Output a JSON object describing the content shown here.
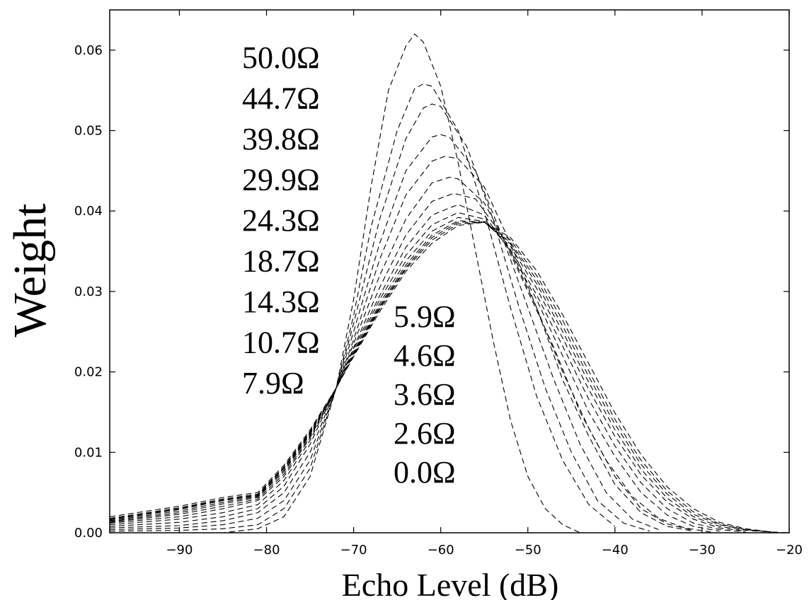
{
  "chart_data": {
    "type": "line",
    "xlabel": "Echo Level (dB)",
    "ylabel": "Weight",
    "xlim": [
      -98,
      -20
    ],
    "ylim": [
      0.0,
      0.065
    ],
    "x_ticks": [
      -90,
      -80,
      -70,
      -60,
      -50,
      -40,
      -30,
      -20
    ],
    "x_tick_labels": [
      "−90",
      "−80",
      "−70",
      "−60",
      "−50",
      "−40",
      "−30",
      "−20"
    ],
    "y_ticks": [
      0.0,
      0.01,
      0.02,
      0.03,
      0.04,
      0.05,
      0.06
    ],
    "y_tick_labels": [
      "0.00",
      "0.01",
      "0.02",
      "0.03",
      "0.04",
      "0.05",
      "0.06"
    ],
    "grid": false,
    "line_style": "dashed",
    "line_color": "#000000",
    "series": [
      {
        "name": "50.0Ω",
        "x": [
          -98,
          -90,
          -85,
          -81,
          -78,
          -75,
          -72,
          -70,
          -68,
          -66,
          -64,
          -63,
          -62,
          -60,
          -58,
          -56,
          -54,
          -52,
          -50,
          -48,
          -46,
          -44
        ],
        "y": [
          0.0,
          0.0,
          0.0,
          0.0005,
          0.002,
          0.007,
          0.018,
          0.029,
          0.043,
          0.055,
          0.0605,
          0.062,
          0.061,
          0.0555,
          0.046,
          0.035,
          0.024,
          0.014,
          0.007,
          0.003,
          0.001,
          0.0
        ]
      },
      {
        "name": "44.7Ω",
        "x": [
          -98,
          -90,
          -85,
          -81,
          -78,
          -75,
          -72,
          -70,
          -68,
          -65,
          -63,
          -62,
          -61,
          -58,
          -55,
          -52,
          -49,
          -46,
          -43,
          -40
        ],
        "y": [
          0.0002,
          0.0003,
          0.0005,
          0.001,
          0.003,
          0.008,
          0.018,
          0.027,
          0.038,
          0.05,
          0.0552,
          0.0558,
          0.0555,
          0.05,
          0.04,
          0.028,
          0.017,
          0.009,
          0.0035,
          0.0008
        ]
      },
      {
        "name": "39.8Ω",
        "x": [
          -98,
          -90,
          -85,
          -81,
          -78,
          -75,
          -72,
          -70,
          -67,
          -64,
          -62,
          -61,
          -60,
          -57,
          -54,
          -51,
          -48,
          -45,
          -42,
          -39,
          -36
        ],
        "y": [
          0.0004,
          0.0006,
          0.001,
          0.0018,
          0.004,
          0.009,
          0.018,
          0.026,
          0.039,
          0.049,
          0.0528,
          0.0533,
          0.053,
          0.048,
          0.039,
          0.028,
          0.018,
          0.01,
          0.004,
          0.0012,
          0.0002
        ]
      },
      {
        "name": "29.9Ω",
        "x": [
          -98,
          -90,
          -85,
          -81,
          -78,
          -75,
          -72,
          -70,
          -67,
          -64,
          -61,
          -60,
          -59,
          -56,
          -53,
          -50,
          -47,
          -44,
          -41,
          -38,
          -35
        ],
        "y": [
          0.0006,
          0.0009,
          0.0015,
          0.0025,
          0.005,
          0.01,
          0.018,
          0.025,
          0.036,
          0.045,
          0.0492,
          0.0495,
          0.0492,
          0.045,
          0.037,
          0.028,
          0.019,
          0.011,
          0.005,
          0.0017,
          0.0004
        ]
      },
      {
        "name": "24.3Ω",
        "x": [
          -98,
          -90,
          -85,
          -81,
          -78,
          -75,
          -72,
          -70,
          -67,
          -64,
          -61,
          -59.5,
          -58,
          -55,
          -52,
          -49,
          -46,
          -43,
          -40,
          -37,
          -34,
          -31
        ],
        "y": [
          0.0008,
          0.0013,
          0.002,
          0.003,
          0.0058,
          0.011,
          0.018,
          0.024,
          0.034,
          0.042,
          0.0462,
          0.0468,
          0.0465,
          0.043,
          0.036,
          0.028,
          0.019,
          0.012,
          0.006,
          0.0025,
          0.0008,
          0.0002
        ]
      },
      {
        "name": "18.7Ω",
        "x": [
          -98,
          -90,
          -85,
          -81,
          -78,
          -75,
          -72,
          -70,
          -67,
          -64,
          -61,
          -59,
          -58,
          -55,
          -52,
          -49,
          -46,
          -43,
          -40,
          -37,
          -34,
          -31
        ],
        "y": [
          0.001,
          0.0017,
          0.0025,
          0.0035,
          0.0065,
          0.0115,
          0.018,
          0.0235,
          0.032,
          0.039,
          0.0435,
          0.0442,
          0.044,
          0.041,
          0.035,
          0.028,
          0.02,
          0.013,
          0.007,
          0.003,
          0.0011,
          0.0003
        ]
      },
      {
        "name": "14.3Ω",
        "x": [
          -98,
          -90,
          -85,
          -81,
          -78,
          -75,
          -72,
          -70,
          -67,
          -64,
          -61,
          -58.5,
          -56,
          -53,
          -50,
          -47,
          -44,
          -41,
          -38,
          -35,
          -32,
          -29
        ],
        "y": [
          0.0012,
          0.002,
          0.003,
          0.004,
          0.007,
          0.0118,
          0.018,
          0.023,
          0.0305,
          0.037,
          0.0412,
          0.0422,
          0.0415,
          0.037,
          0.03,
          0.023,
          0.015,
          0.009,
          0.0045,
          0.0018,
          0.0006,
          0.0001
        ]
      },
      {
        "name": "10.7Ω",
        "x": [
          -98,
          -90,
          -85,
          -81,
          -78,
          -75,
          -72,
          -70,
          -67,
          -64,
          -61,
          -58,
          -55,
          -52,
          -49,
          -46,
          -43,
          -40,
          -37,
          -34,
          -31,
          -28
        ],
        "y": [
          0.0013,
          0.0023,
          0.0033,
          0.0042,
          0.0073,
          0.012,
          0.018,
          0.0228,
          0.0295,
          0.0355,
          0.0395,
          0.0408,
          0.0395,
          0.035,
          0.029,
          0.022,
          0.015,
          0.0095,
          0.005,
          0.0022,
          0.0008,
          0.0002
        ]
      },
      {
        "name": "7.9Ω",
        "x": [
          -98,
          -90,
          -85,
          -81,
          -78,
          -75,
          -72,
          -70,
          -67,
          -64,
          -61,
          -58,
          -55,
          -52,
          -49,
          -46,
          -43,
          -40,
          -37,
          -34,
          -31,
          -28,
          -25
        ],
        "y": [
          0.0014,
          0.0025,
          0.0036,
          0.0044,
          0.0076,
          0.0122,
          0.018,
          0.0225,
          0.029,
          0.0345,
          0.0383,
          0.0398,
          0.039,
          0.0352,
          0.0296,
          0.0232,
          0.0166,
          0.0108,
          0.0062,
          0.003,
          0.0012,
          0.0004,
          0.0001
        ]
      },
      {
        "name": "5.9Ω",
        "x": [
          -98,
          -90,
          -85,
          -81,
          -78,
          -75,
          -72,
          -70,
          -67,
          -64,
          -61,
          -58,
          -55,
          -52,
          -49,
          -46,
          -43,
          -40,
          -37,
          -34,
          -31,
          -28,
          -25
        ],
        "y": [
          0.0015,
          0.0027,
          0.0038,
          0.0045,
          0.0078,
          0.0123,
          0.018,
          0.0223,
          0.0285,
          0.0338,
          0.0375,
          0.0392,
          0.0387,
          0.0356,
          0.0304,
          0.0242,
          0.0178,
          0.012,
          0.0072,
          0.0038,
          0.0017,
          0.0006,
          0.0002
        ]
      },
      {
        "name": "4.6Ω",
        "x": [
          -98,
          -90,
          -85,
          -81,
          -78,
          -75,
          -72,
          -70,
          -67,
          -64,
          -61,
          -58,
          -55,
          -52,
          -49,
          -46,
          -43,
          -40,
          -37,
          -34,
          -31,
          -28,
          -25,
          -22
        ],
        "y": [
          0.0016,
          0.0029,
          0.004,
          0.0046,
          0.008,
          0.0124,
          0.018,
          0.0222,
          0.0282,
          0.0333,
          0.037,
          0.0388,
          0.0386,
          0.0359,
          0.031,
          0.025,
          0.0187,
          0.0128,
          0.0079,
          0.0043,
          0.002,
          0.0008,
          0.0003,
          0.0001
        ]
      },
      {
        "name": "3.6Ω",
        "x": [
          -98,
          -90,
          -85,
          -81,
          -78,
          -75,
          -72,
          -70,
          -67,
          -64,
          -61,
          -58,
          -55,
          -52,
          -49,
          -46,
          -43,
          -40,
          -37,
          -34,
          -31,
          -28,
          -25,
          -22
        ],
        "y": [
          0.0017,
          0.003,
          0.0041,
          0.0047,
          0.0081,
          0.0125,
          0.018,
          0.0221,
          0.028,
          0.033,
          0.0367,
          0.0386,
          0.0386,
          0.0361,
          0.0315,
          0.0257,
          0.0194,
          0.0135,
          0.0085,
          0.0048,
          0.0023,
          0.001,
          0.0004,
          0.0001
        ]
      },
      {
        "name": "2.6Ω",
        "x": [
          -98,
          -90,
          -85,
          -81,
          -78,
          -75,
          -72,
          -70,
          -67,
          -64,
          -61,
          -58,
          -55,
          -52,
          -49,
          -46,
          -43,
          -40,
          -37,
          -34,
          -31,
          -28,
          -25,
          -22
        ],
        "y": [
          0.0018,
          0.0031,
          0.0042,
          0.0048,
          0.0082,
          0.0126,
          0.018,
          0.022,
          0.0278,
          0.0328,
          0.0364,
          0.0384,
          0.0386,
          0.0364,
          0.032,
          0.0264,
          0.0201,
          0.0141,
          0.009,
          0.0052,
          0.0026,
          0.0011,
          0.0004,
          0.0001
        ]
      },
      {
        "name": "0.0Ω",
        "x": [
          -98,
          -90,
          -85,
          -81,
          -78,
          -75,
          -72,
          -70,
          -67,
          -64,
          -61,
          -58,
          -55,
          -52,
          -49,
          -46,
          -43,
          -40,
          -37,
          -34,
          -31,
          -28,
          -25,
          -22,
          -20
        ],
        "y": [
          0.002,
          0.0033,
          0.0044,
          0.005,
          0.0084,
          0.0128,
          0.018,
          0.0219,
          0.0275,
          0.0325,
          0.036,
          0.0382,
          0.0386,
          0.0367,
          0.0326,
          0.0271,
          0.021,
          0.0149,
          0.0097,
          0.0057,
          0.003,
          0.0013,
          0.0005,
          0.0001,
          0.0
        ]
      }
    ]
  }
}
